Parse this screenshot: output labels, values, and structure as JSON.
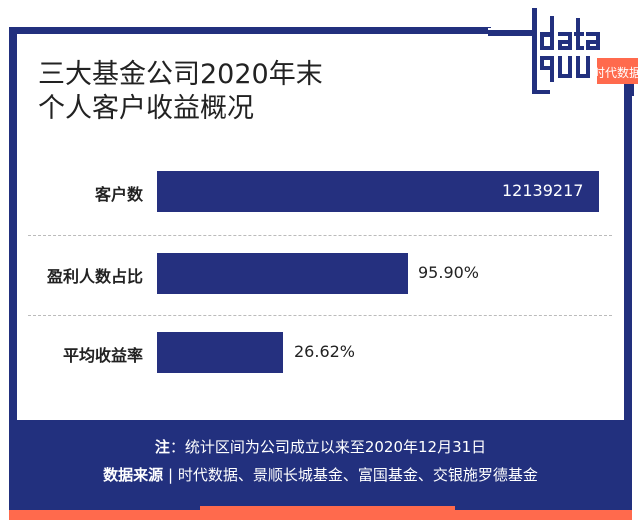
{
  "title_line1": "三大基金公司2020年末",
  "title_line2": "个人客户收益概况",
  "logo": {
    "text_top": "data",
    "text_bottom": "guu",
    "brand": "时代数据"
  },
  "colors": {
    "navy": "#22307e",
    "bar": "#25307f",
    "orange": "#ff6a4d"
  },
  "chart_data": {
    "type": "bar",
    "orientation": "horizontal",
    "categories": [
      "客户数",
      "盈利人数占比",
      "平均收益率"
    ],
    "values": [
      12139217,
      95.9,
      26.62
    ],
    "labels": [
      "12139217",
      "95.90%",
      "26.62%"
    ]
  },
  "footer": {
    "note_label": "注",
    "note_text": "：统计区间为公司成立以来至2020年12月31日",
    "source_label": "数据来源",
    "source_sep": "|",
    "source_text": "时代数据、景顺长城基金、富国基金、交银施罗德基金"
  }
}
